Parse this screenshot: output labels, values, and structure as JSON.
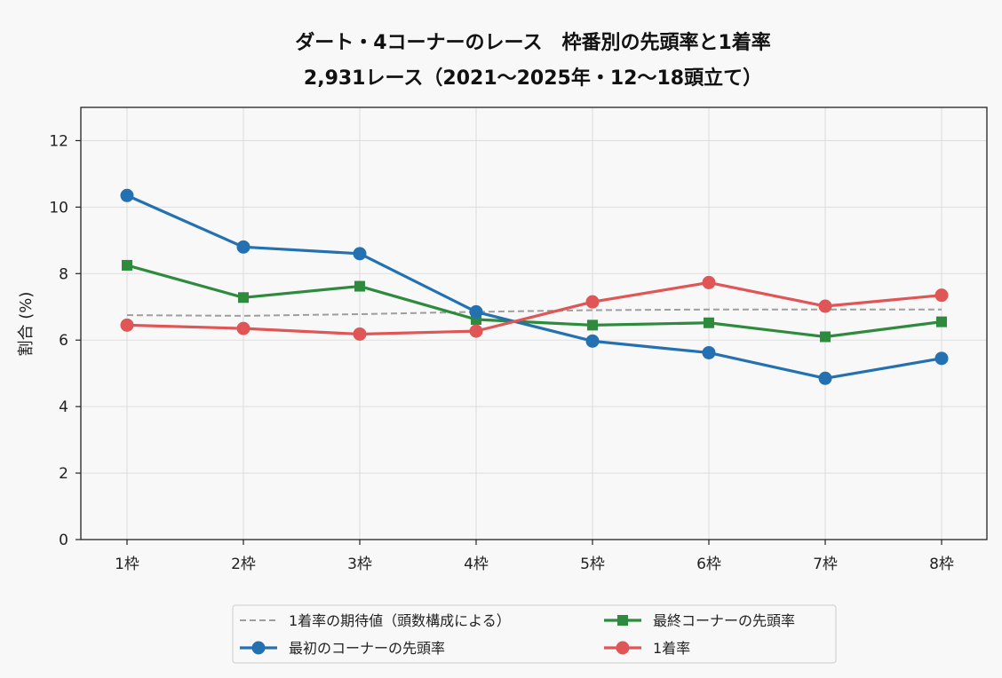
{
  "chart_data": {
    "type": "line",
    "title": [
      "ダート・4コーナーのレース　枠番別の先頭率と1着率",
      "2,931レース（2021～2025年・12～18頭立て）"
    ],
    "xlabel": "",
    "ylabel": "割合 (%)",
    "categories": [
      "1枠",
      "2枠",
      "3枠",
      "4枠",
      "5枠",
      "6枠",
      "7枠",
      "8枠"
    ],
    "ylim": [
      0,
      13
    ],
    "yticks": [
      0,
      2,
      4,
      6,
      8,
      10,
      12
    ],
    "grid": true,
    "legend_position": "bottom",
    "series": [
      {
        "name": "1着率の期待値（頭数構成による）",
        "style": "dashed",
        "marker": "none",
        "color": "#9e9e9e",
        "values": [
          6.75,
          6.73,
          6.78,
          6.85,
          6.9,
          6.92,
          6.92,
          6.92
        ]
      },
      {
        "name": "最初のコーナーの先頭率",
        "style": "solid",
        "marker": "circle",
        "color": "#2471b2",
        "values": [
          10.35,
          8.8,
          8.6,
          6.85,
          5.97,
          5.62,
          4.85,
          5.45
        ]
      },
      {
        "name": "最終コーナーの先頭率",
        "style": "solid",
        "marker": "square",
        "color": "#2e8b3e",
        "values": [
          8.25,
          7.28,
          7.62,
          6.62,
          6.45,
          6.52,
          6.1,
          6.55
        ]
      },
      {
        "name": "1着率",
        "style": "solid",
        "marker": "circle",
        "color": "#e05555",
        "values": [
          6.45,
          6.35,
          6.18,
          6.27,
          7.15,
          7.73,
          7.02,
          7.35
        ]
      }
    ],
    "legend_order": [
      0,
      2,
      1,
      3
    ]
  }
}
